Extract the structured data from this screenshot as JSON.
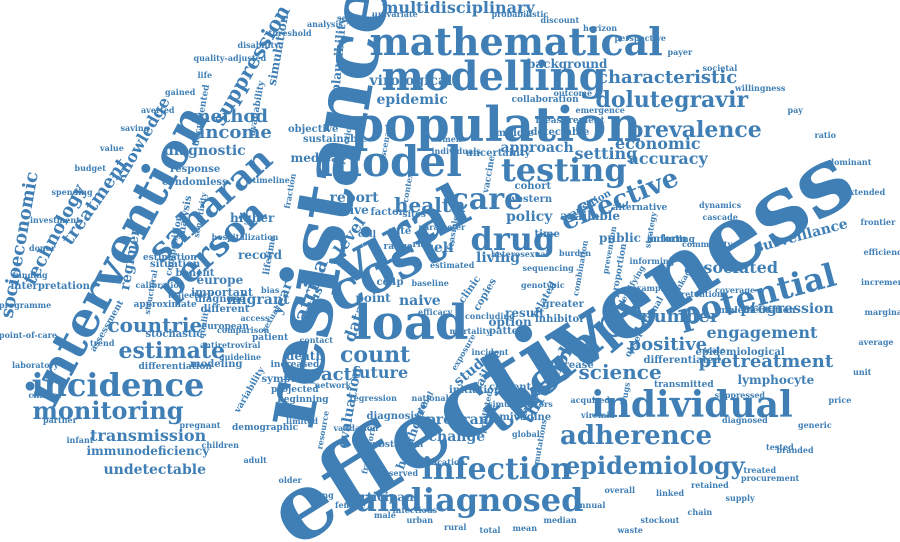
{
  "word_cloud": {
    "color": "#3f7fb5",
    "background": "#ffffff",
    "words": [
      "effectiveness",
      "resistance",
      "population",
      "intervention",
      "modelling",
      "mathematical",
      "viral",
      "load",
      "cost",
      "model",
      "therapy",
      "individual",
      "incidence",
      "testing",
      "saharan",
      "person",
      "drug",
      "care",
      "potential",
      "adherence",
      "epidemiology",
      "undiagnosed",
      "infection",
      "monitoring",
      "estimate",
      "count",
      "countrie",
      "prevalence",
      "dolutegravir",
      "characteristic",
      "multidisciplinary",
      "suppression",
      "technology",
      "socioeconomic",
      "treatment",
      "knowledge",
      "effective",
      "health",
      "income",
      "method",
      "diagnostic",
      "transmission",
      "immunodeficiency",
      "undetectable",
      "regimen",
      "europe",
      "important",
      "diagnose",
      "science",
      "positive",
      "pretreatment",
      "engagement",
      "number",
      "progression",
      "surveillance",
      "associated",
      "lymphocyte",
      "epidemic",
      "virological",
      "background",
      "economic",
      "accuracy",
      "setting",
      "approach",
      "policy",
      "report",
      "level",
      "africa",
      "data",
      "impact",
      "future",
      "death",
      "study",
      "threshold",
      "program",
      "change",
      "participant",
      "naive",
      "self",
      "living",
      "public",
      "result",
      "option",
      "interpretation",
      "benefit",
      "simulation",
      "plausibility",
      "sustainable",
      "objective",
      "uncertainty",
      "middle",
      "detectable",
      "transition",
      "available",
      "evaluation",
      "failure",
      "clinic",
      "copies",
      "related",
      "greater",
      "inhibitor",
      "pattern",
      "initiation",
      "increase",
      "medical",
      "higher",
      "active",
      "factor",
      "rate",
      "cd4p",
      "point",
      "status",
      "year",
      "record",
      "migrant",
      "stochastic",
      "modeling",
      "symptom",
      "differentiation",
      "differentiated",
      "transmitted",
      "epidemiological",
      "implementation",
      "observational",
      "inform",
      "cohort",
      "time",
      "western",
      "vaccine",
      "collaboration",
      "measurement",
      "situation",
      "composition",
      "estimation",
      "analysis",
      "different",
      "approximate",
      "assessment",
      "documented",
      "availability",
      "response",
      "condomless",
      "lifetime",
      "european",
      "patient",
      "increased",
      "projected",
      "beginning",
      "demographic",
      "diagnosis",
      "healthcare",
      "lamivudine",
      "substantial",
      "current",
      "range",
      "cell",
      "risk",
      "sites",
      "scenario",
      "reduction",
      "alternative",
      "informing",
      "including",
      "proportion",
      "identifying",
      "example",
      "sensitivity",
      "hospitalization",
      "variability",
      "mortality",
      "concluding",
      "baseline",
      "timeline",
      "context",
      "parameter",
      "feasible",
      "efficacy",
      "heterosexual",
      "estimated",
      "fraction",
      "comparison",
      "bias",
      "individuals",
      "women",
      "outcome",
      "emergence",
      "dynamics",
      "cascade",
      "strategy",
      "community",
      "linkage",
      "retention",
      "coverage",
      "scale",
      "burden",
      "prevention",
      "exposure",
      "incident",
      "national",
      "regional",
      "global",
      "mutations",
      "genotypic",
      "combination",
      "sequencing",
      "resource",
      "limited",
      "antiretroviral",
      "guideline",
      "structural",
      "calibration",
      "trajectory",
      "trend",
      "quality",
      "access",
      "sexual",
      "contact",
      "network",
      "regression",
      "validation",
      "framework",
      "medication",
      "infectious",
      "observed",
      "predicted",
      "simulated",
      "factors",
      "acquired",
      "drugs",
      "viremia",
      "suppressed",
      "diagnosed",
      "tested",
      "treated",
      "retained",
      "linked",
      "overall",
      "annual",
      "median",
      "mean",
      "total",
      "rural",
      "urban",
      "male",
      "female",
      "young",
      "older",
      "adult",
      "children",
      "pregnant",
      "infant",
      "partner",
      "clinical",
      "laboratory",
      "point-of-care",
      "programme",
      "funding",
      "donor",
      "investment",
      "spending",
      "budget",
      "value",
      "saving",
      "averted",
      "gained",
      "life",
      "quality-adjusted",
      "disability",
      "threshold",
      "analysis",
      "sensitivity",
      "univariate",
      "probabilistic",
      "discount",
      "horizon",
      "perspective",
      "payer",
      "societal",
      "willingness",
      "pay",
      "ratio",
      "dominant",
      "extended",
      "frontier",
      "efficiency",
      "incremental",
      "marginal",
      "average",
      "unit",
      "price",
      "generic",
      "branded",
      "procurement",
      "supply",
      "chain",
      "stockout",
      "waste"
    ]
  }
}
